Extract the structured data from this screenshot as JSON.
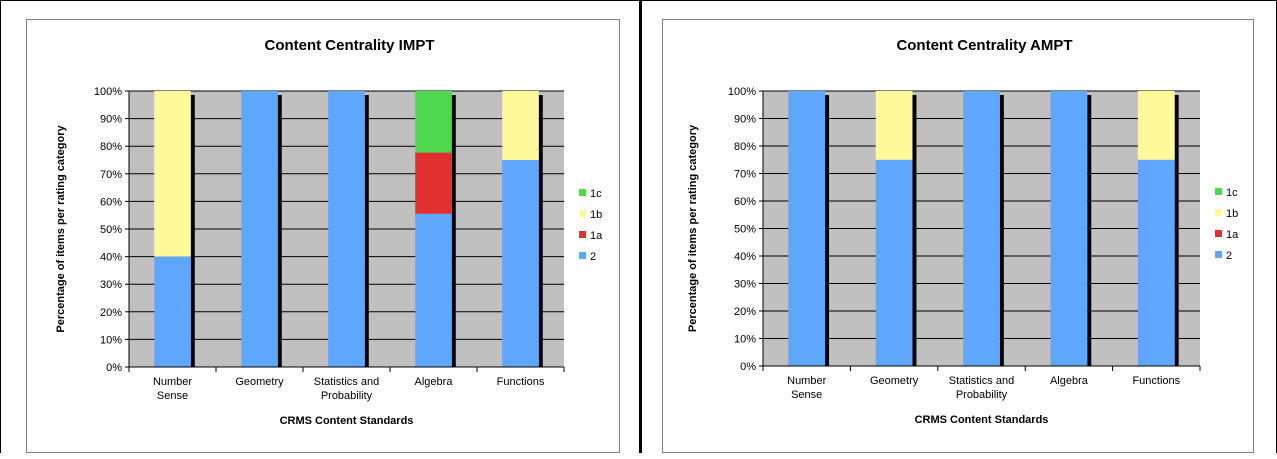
{
  "colors": {
    "plot_bg": "#C0C0C0",
    "c2": "#5FA6FF",
    "c1a": "#E03030",
    "c1b": "#FFF99A",
    "c1c": "#4DD84D",
    "shadow": "#000000",
    "axis": "#000000"
  },
  "chart_data": [
    {
      "type": "bar",
      "stacked": true,
      "title": "Content Centrality IMPT",
      "xlabel": "CRMS Content Standards",
      "ylabel": "Percentage of items per rating category",
      "categories": [
        "Number Sense",
        "Geometry",
        "Statistics and Probability",
        "Algebra",
        "Functions"
      ],
      "category_lines": [
        [
          "Number",
          "Sense"
        ],
        [
          "Geometry"
        ],
        [
          "Statistics and",
          "Probability"
        ],
        [
          "Algebra"
        ],
        [
          "Functions"
        ]
      ],
      "yticks": [
        "0%",
        "10%",
        "20%",
        "30%",
        "40%",
        "50%",
        "60%",
        "70%",
        "80%",
        "90%",
        "100%"
      ],
      "ylim": [
        0,
        100
      ],
      "grid": true,
      "legend_position": "right",
      "series": [
        {
          "name": "2",
          "color": "#5FA6FF",
          "values": [
            40,
            100,
            100,
            55.5,
            75
          ]
        },
        {
          "name": "1a",
          "color": "#E03030",
          "values": [
            0,
            0,
            0,
            22.2,
            0
          ]
        },
        {
          "name": "1b",
          "color": "#FFF99A",
          "values": [
            60,
            0,
            0,
            0,
            25
          ]
        },
        {
          "name": "1c",
          "color": "#4DD84D",
          "values": [
            0,
            0,
            0,
            22.3,
            0
          ]
        }
      ],
      "legend_order": [
        "1c",
        "1b",
        "1a",
        "2"
      ]
    },
    {
      "type": "bar",
      "stacked": true,
      "title": "Content Centrality AMPT",
      "xlabel": "CRMS Content Standards",
      "ylabel": "Percentage of items per rating category",
      "categories": [
        "Number Sense",
        "Geometry",
        "Statistics and Probability",
        "Algebra",
        "Functions"
      ],
      "category_lines": [
        [
          "Number",
          "Sense"
        ],
        [
          "Geometry"
        ],
        [
          "Statistics and",
          "Probability"
        ],
        [
          "Algebra"
        ],
        [
          "Functions"
        ]
      ],
      "yticks": [
        "0%",
        "10%",
        "20%",
        "30%",
        "40%",
        "50%",
        "60%",
        "70%",
        "80%",
        "90%",
        "100%"
      ],
      "ylim": [
        0,
        100
      ],
      "grid": true,
      "legend_position": "right",
      "series": [
        {
          "name": "2",
          "color": "#5FA6FF",
          "values": [
            100,
            75,
            100,
            100,
            75
          ]
        },
        {
          "name": "1a",
          "color": "#E03030",
          "values": [
            0,
            0,
            0,
            0,
            0
          ]
        },
        {
          "name": "1b",
          "color": "#FFF99A",
          "values": [
            0,
            25,
            0,
            0,
            25
          ]
        },
        {
          "name": "1c",
          "color": "#4DD84D",
          "values": [
            0,
            0,
            0,
            0,
            0
          ]
        }
      ],
      "legend_order": [
        "1c",
        "1b",
        "1a",
        "2"
      ]
    }
  ]
}
